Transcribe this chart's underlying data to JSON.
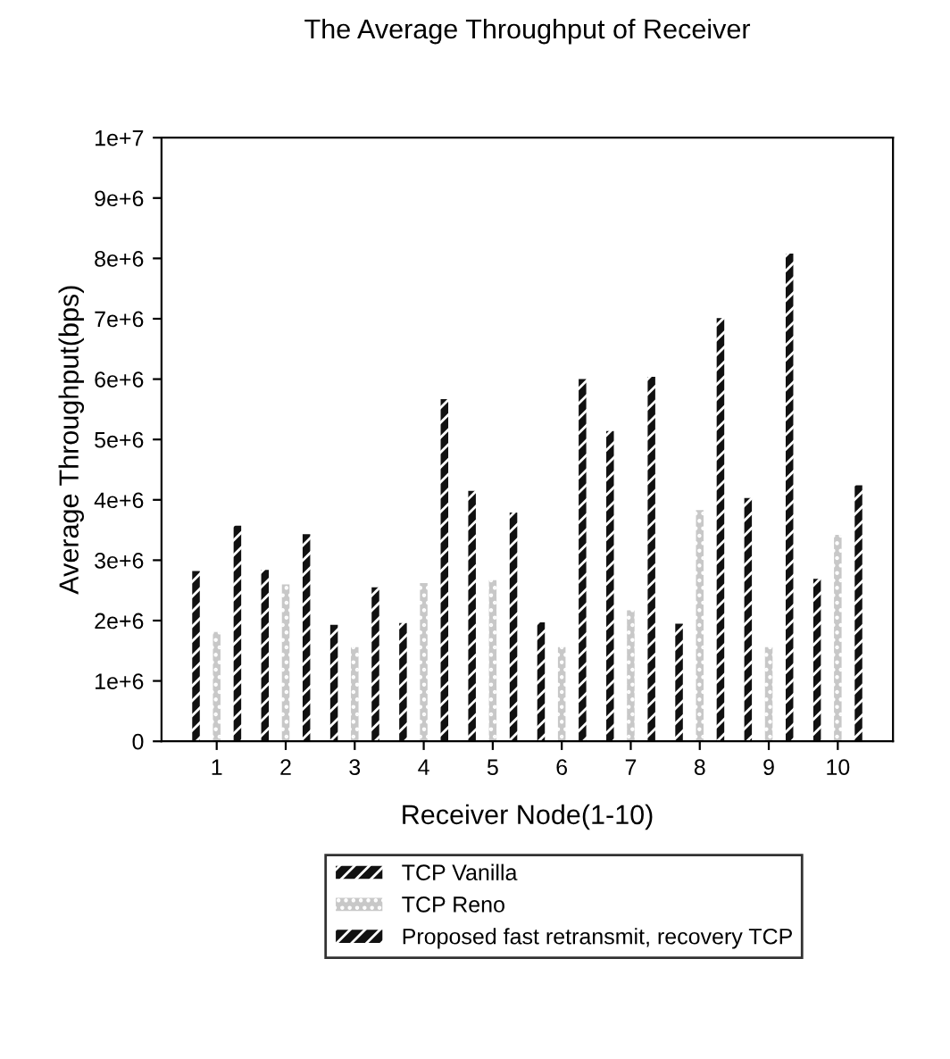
{
  "chart_data": {
    "type": "bar",
    "title": "The Average Throughput of Receiver",
    "xlabel": "Receiver Node(1-10)",
    "ylabel": "Average Throughput(bps)",
    "categories": [
      "1",
      "2",
      "3",
      "4",
      "5",
      "6",
      "7",
      "8",
      "9",
      "10"
    ],
    "series": [
      {
        "name": "TCP Vanilla",
        "color": "#111111",
        "values": [
          2820000,
          2840000,
          1930000,
          1960000,
          4150000,
          1970000,
          5140000,
          1950000,
          4030000,
          2690000
        ]
      },
      {
        "name": "TCP Reno",
        "color": "#c8c8c8",
        "values": [
          1810000,
          2600000,
          1560000,
          2620000,
          2670000,
          1560000,
          2170000,
          3830000,
          1560000,
          3420000
        ]
      },
      {
        "name": "Proposed fast retransmit, recovery TCP",
        "color": "#111111",
        "values": [
          3570000,
          3430000,
          2550000,
          5670000,
          3790000,
          6000000,
          6040000,
          7010000,
          8080000,
          4240000
        ]
      }
    ],
    "ylim": [
      0,
      10000000
    ],
    "yticks": [
      0,
      {
        "value": 1000000,
        "label": "1e+6"
      },
      {
        "value": 2000000,
        "label": "2e+6"
      },
      {
        "value": 3000000,
        "label": "3e+6"
      },
      {
        "value": 4000000,
        "label": "4e+6"
      },
      {
        "value": 5000000,
        "label": "5e+6"
      },
      {
        "value": 6000000,
        "label": "6e+6"
      },
      {
        "value": 7000000,
        "label": "7e+6"
      },
      {
        "value": 8000000,
        "label": "8e+6"
      },
      {
        "value": 9000000,
        "label": "9e+6"
      },
      {
        "value": 10000000,
        "label": "1e+7"
      }
    ],
    "legend": "bottom",
    "grid": false
  }
}
